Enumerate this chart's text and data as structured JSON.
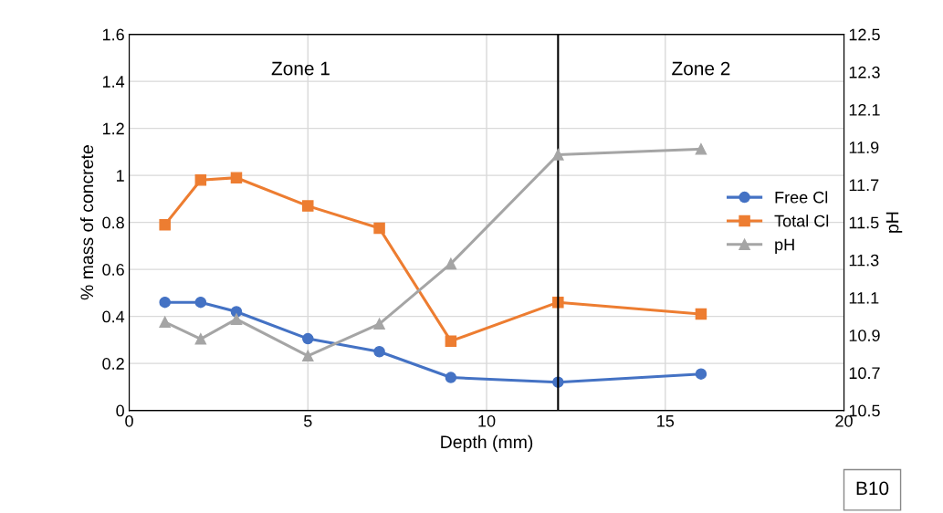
{
  "chart_data": {
    "type": "line",
    "xlabel": "Depth (mm)",
    "ylabel": "% mass of concrete",
    "y2label": "pH",
    "x": [
      1,
      2,
      3,
      5,
      7,
      9,
      12,
      16
    ],
    "series": [
      {
        "name": "Free Cl",
        "color": "#4472c4",
        "values": [
          0.46,
          0.46,
          0.42,
          0.305,
          0.25,
          0.14,
          0.12,
          0.155
        ],
        "marker": "circle"
      },
      {
        "name": "Total Cl",
        "color": "#ed7d31",
        "values": [
          0.79,
          0.98,
          0.99,
          0.87,
          0.775,
          0.295,
          0.46,
          0.41
        ],
        "marker": "square"
      },
      {
        "name": "pH",
        "color": "#a5a5a5",
        "values": [
          10.97,
          10.88,
          10.985,
          10.79,
          10.96,
          11.28,
          11.86,
          11.89
        ],
        "marker": "triangle",
        "axis": "y2"
      }
    ],
    "xlim": [
      0,
      20
    ],
    "xticks": [
      0,
      5,
      10,
      15,
      20
    ],
    "ylim": [
      0,
      1.6
    ],
    "yticks": [
      0,
      0.2,
      0.4,
      0.6,
      0.8,
      1,
      1.2,
      1.4,
      1.6
    ],
    "y2lim": [
      10.5,
      12.5
    ],
    "y2ticks": [
      10.5,
      10.7,
      10.9,
      11.1,
      11.3,
      11.5,
      11.7,
      11.9,
      12.1,
      12.3,
      12.5
    ],
    "ref_lines": [
      {
        "axis": "x",
        "value": 12,
        "color": "#000000"
      }
    ],
    "annotations": [
      "Zone 1",
      "Zone 2",
      "B10"
    ],
    "grid": true,
    "legend": "center right",
    "line_style": "solid"
  }
}
